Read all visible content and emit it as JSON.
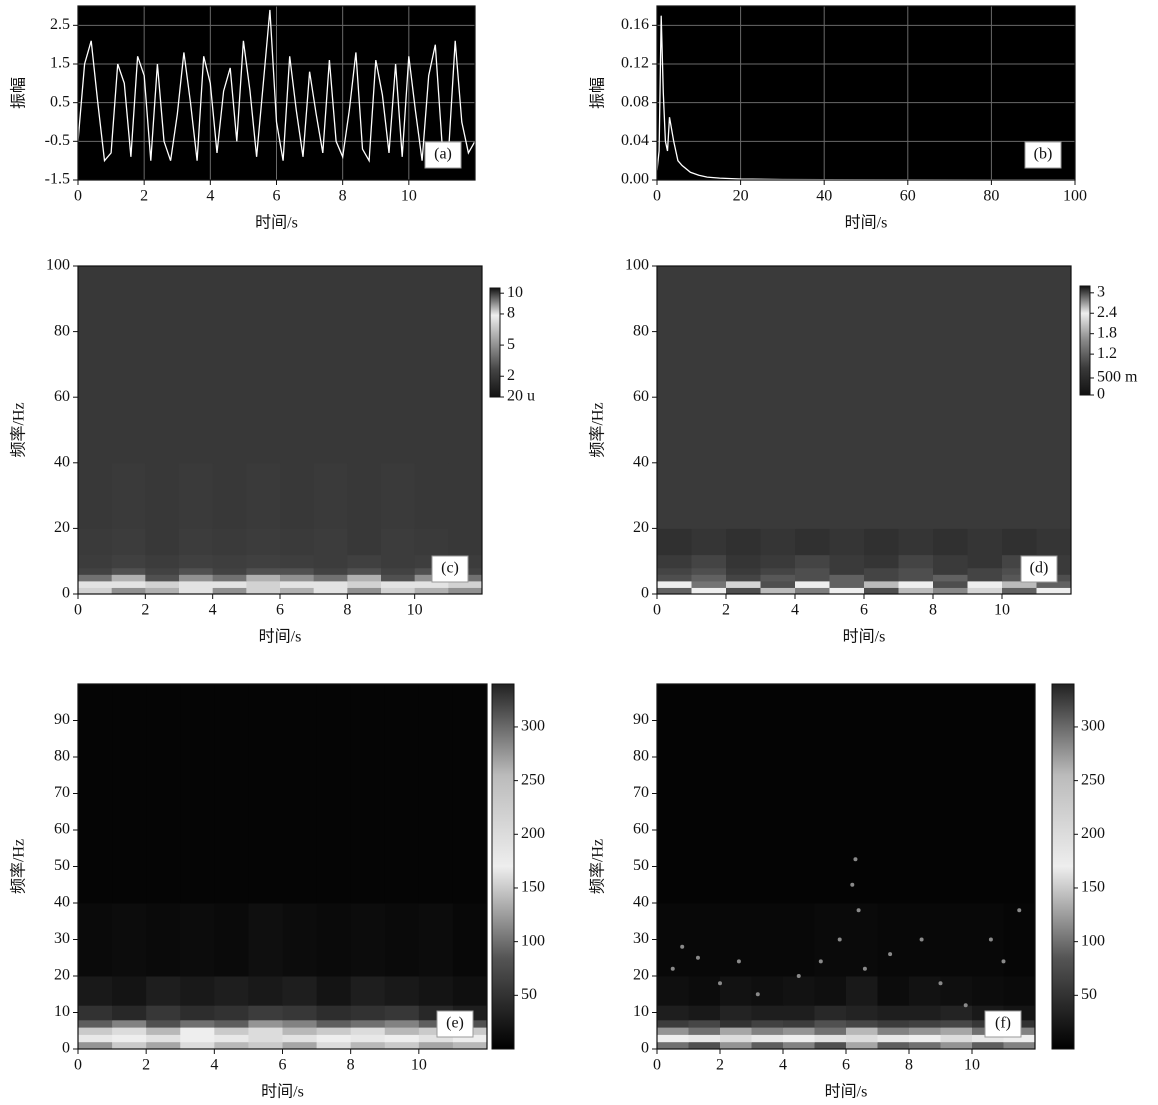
{
  "chart_data": [
    {
      "type": "line",
      "annotation": "(a)",
      "xlabel": "时间/s",
      "ylabel": "振幅",
      "color": "#ffffff",
      "background": "#000000",
      "grid": true,
      "xlim": [
        0,
        12
      ],
      "ylim": [
        -1.5,
        3
      ],
      "xticks": [
        0,
        2,
        4,
        6,
        8,
        10
      ],
      "yticks": [
        -1.5,
        -0.5,
        0.5,
        1.5,
        2.5
      ],
      "x": [
        0,
        0.2,
        0.4,
        0.6,
        0.8,
        1,
        1.2,
        1.4,
        1.6,
        1.8,
        2,
        2.2,
        2.4,
        2.6,
        2.8,
        3,
        3.2,
        3.4,
        3.6,
        3.8,
        4,
        4.2,
        4.4,
        4.6,
        4.8,
        5,
        5.2,
        5.4,
        5.6,
        5.8,
        6,
        6.2,
        6.4,
        6.6,
        6.8,
        7,
        7.2,
        7.4,
        7.6,
        7.8,
        8,
        8.2,
        8.4,
        8.6,
        8.8,
        9,
        9.2,
        9.4,
        9.6,
        9.8,
        10,
        10.2,
        10.4,
        10.6,
        10.8,
        11,
        11.2,
        11.4,
        11.6,
        11.8,
        12
      ],
      "values": [
        -0.5,
        1.5,
        2.1,
        0.5,
        -1.0,
        -0.8,
        1.5,
        1.0,
        -0.9,
        1.7,
        1.2,
        -1.0,
        1.5,
        -0.5,
        -1.0,
        0.2,
        1.8,
        0.5,
        -1.0,
        1.7,
        1.0,
        -0.8,
        0.8,
        1.4,
        -0.5,
        2.1,
        0.8,
        -0.9,
        1.0,
        2.9,
        0.0,
        -1.0,
        1.7,
        0.3,
        -0.9,
        1.3,
        0.2,
        -0.8,
        1.6,
        -0.5,
        -0.9,
        0.3,
        1.8,
        -0.7,
        -1.0,
        1.6,
        0.7,
        -0.8,
        1.5,
        -0.9,
        1.7,
        0.3,
        -1.0,
        1.2,
        2.0,
        -0.5,
        -0.8,
        2.1,
        0.0,
        -0.8,
        -0.5
      ]
    },
    {
      "type": "line",
      "annotation": "(b)",
      "xlabel": "时间/s",
      "ylabel": "振幅",
      "color": "#ffffff",
      "background": "#000000",
      "grid": true,
      "xlim": [
        0,
        100
      ],
      "ylim": [
        0,
        0.18
      ],
      "xticks": [
        0,
        20,
        40,
        60,
        80,
        100
      ],
      "yticks": [
        {
          "value": 0,
          "label": "0.00"
        },
        {
          "value": 0.04,
          "label": "0.04"
        },
        {
          "value": 0.08,
          "label": "0.08"
        },
        {
          "value": 0.12,
          "label": "0.12"
        },
        {
          "value": 0.16,
          "label": "0.16"
        }
      ],
      "x": [
        0,
        0.5,
        1,
        1.5,
        2,
        2.5,
        3,
        4,
        5,
        6,
        8,
        10,
        12,
        15,
        20,
        30,
        40,
        60,
        80,
        100
      ],
      "values": [
        0.01,
        0.03,
        0.17,
        0.09,
        0.04,
        0.03,
        0.065,
        0.04,
        0.02,
        0.015,
        0.008,
        0.005,
        0.003,
        0.002,
        0.001,
        0.0005,
        0.0003,
        0.0002,
        0.0001,
        0.0001
      ]
    },
    {
      "type": "heatmap",
      "annotation": "(c)",
      "xlabel": "时间/s",
      "ylabel": "频率/Hz",
      "background": "#3a3a3a",
      "xlim": [
        0,
        12
      ],
      "ylim": [
        0,
        100
      ],
      "xticks": [
        0,
        2,
        4,
        6,
        8,
        10
      ],
      "yticks": [
        0,
        20,
        40,
        60,
        80,
        100
      ],
      "zlim": [
        0,
        10.5
      ],
      "zticks": [
        10,
        8,
        5,
        2,
        {
          "value": 2e-05,
          "label": "20 u"
        }
      ],
      "colormap": [
        "#111111",
        "#444444",
        "#999999",
        "#eeeeee",
        "#111111"
      ],
      "x_edges": [
        0,
        1,
        2,
        3,
        4,
        5,
        6,
        7,
        8,
        9,
        10,
        11,
        12
      ],
      "y_edges": [
        0,
        2,
        4,
        6,
        8,
        12,
        20,
        40,
        100
      ],
      "z": [
        [
          7,
          5,
          6,
          8,
          5,
          7,
          6,
          8,
          5,
          7,
          6,
          5
        ],
        [
          8,
          8,
          7,
          8,
          8,
          7,
          8,
          8,
          7,
          8,
          8,
          7
        ],
        [
          4,
          6,
          3,
          5,
          4,
          6,
          5,
          4,
          6,
          3,
          5,
          4
        ],
        [
          2.5,
          3,
          2.5,
          3,
          2.5,
          3,
          3,
          2.5,
          3,
          2.5,
          3,
          2.5
        ],
        [
          2.2,
          2.4,
          2.2,
          2.4,
          2.3,
          2.4,
          2.3,
          2.2,
          2.4,
          2.2,
          2.3,
          2.2
        ],
        [
          2.1,
          2.2,
          2,
          2.2,
          2.1,
          2.2,
          2.1,
          2.2,
          2,
          2.2,
          2.1,
          2
        ],
        [
          2,
          2.1,
          2,
          2.1,
          2,
          2.1,
          2,
          2.1,
          2,
          2.1,
          2,
          2
        ],
        [
          2,
          2,
          2,
          2,
          2,
          2,
          2,
          2,
          2,
          2,
          2,
          2
        ]
      ]
    },
    {
      "type": "heatmap",
      "annotation": "(d)",
      "xlabel": "时间/s",
      "ylabel": "频率/Hz",
      "background": "#3a3a3a",
      "xlim": [
        0,
        12
      ],
      "ylim": [
        0,
        100
      ],
      "xticks": [
        0,
        2,
        4,
        6,
        8,
        10
      ],
      "yticks": [
        0,
        20,
        40,
        60,
        80,
        100
      ],
      "zlim": [
        0,
        3.2
      ],
      "zticks": [
        3,
        2.4,
        1.8,
        1.2,
        {
          "value": 0.5,
          "label": "500 m"
        },
        0
      ],
      "colormap": [
        "#111111",
        "#3a3a3a",
        "#888888",
        "#eeeeee",
        "#111111"
      ],
      "x_edges": [
        0,
        1,
        2,
        3,
        4,
        5,
        6,
        7,
        8,
        9,
        10,
        11,
        12
      ],
      "y_edges": [
        0,
        2,
        4,
        6,
        8,
        12,
        20,
        40,
        100
      ],
      "z": [
        [
          1.2,
          2.4,
          1,
          2,
          1.5,
          2.4,
          1,
          2,
          1.6,
          2.2,
          1.2,
          2.4
        ],
        [
          2.4,
          1.4,
          2.2,
          1,
          2.4,
          1.2,
          2.0,
          2.4,
          1,
          2.4,
          2.0,
          1.2
        ],
        [
          1.0,
          1.2,
          0.9,
          1.1,
          1,
          1.2,
          0.9,
          1,
          1.2,
          0.9,
          1.1,
          1
        ],
        [
          0.9,
          1,
          0.8,
          0.9,
          1,
          0.8,
          0.9,
          1,
          0.8,
          0.9,
          1,
          0.8
        ],
        [
          0.8,
          0.9,
          0.7,
          0.8,
          0.9,
          0.8,
          0.7,
          0.9,
          0.8,
          0.7,
          0.9,
          0.8
        ],
        [
          0.6,
          0.7,
          0.6,
          0.7,
          0.6,
          0.7,
          0.6,
          0.7,
          0.6,
          0.7,
          0.6,
          0.7
        ],
        [
          0.8,
          0.8,
          0.8,
          0.8,
          0.8,
          0.8,
          0.8,
          0.8,
          0.8,
          0.8,
          0.8,
          0.8
        ],
        [
          0.8,
          0.8,
          0.8,
          0.8,
          0.8,
          0.8,
          0.8,
          0.8,
          0.8,
          0.8,
          0.8,
          0.8
        ]
      ]
    },
    {
      "type": "heatmap",
      "annotation": "(e)",
      "xlabel": "时间/s",
      "ylabel": "频率/Hz",
      "background": "#000000",
      "xlim": [
        0,
        12
      ],
      "ylim": [
        0,
        100
      ],
      "xticks": [
        0,
        2,
        4,
        6,
        8,
        10
      ],
      "yticks": [
        0,
        10,
        20,
        30,
        40,
        50,
        60,
        70,
        80,
        90
      ],
      "zlim": [
        0,
        340
      ],
      "zticks": [
        50,
        100,
        150,
        200,
        250,
        300
      ],
      "colormap": [
        "#000000",
        "#555555",
        "#eeeeee",
        "#bbbbbb",
        "#222222"
      ],
      "x_edges": [
        0,
        1,
        2,
        3,
        4,
        5,
        6,
        7,
        8,
        9,
        10,
        11,
        12
      ],
      "y_edges": [
        0,
        2,
        4,
        6,
        8,
        12,
        20,
        40,
        100
      ],
      "z": [
        [
          120,
          150,
          130,
          160,
          140,
          150,
          130,
          160,
          140,
          150,
          130,
          140
        ],
        [
          180,
          170,
          190,
          170,
          180,
          160,
          190,
          170,
          180,
          170,
          190,
          170
        ],
        [
          150,
          160,
          140,
          170,
          150,
          160,
          140,
          150,
          160,
          140,
          150,
          150
        ],
        [
          90,
          110,
          80,
          100,
          90,
          120,
          110,
          90,
          100,
          110,
          90,
          80
        ],
        [
          50,
          40,
          55,
          45,
          50,
          60,
          55,
          45,
          50,
          55,
          40,
          30
        ],
        [
          25,
          20,
          30,
          25,
          30,
          25,
          30,
          20,
          30,
          25,
          20,
          15
        ],
        [
          10,
          12,
          10,
          12,
          10,
          15,
          12,
          10,
          12,
          10,
          12,
          8
        ],
        [
          5,
          5,
          5,
          5,
          5,
          5,
          5,
          5,
          5,
          5,
          5,
          5
        ]
      ]
    },
    {
      "type": "heatmap",
      "annotation": "(f)",
      "xlabel": "时间/s",
      "ylabel": "频率/Hz",
      "background": "#000000",
      "xlim": [
        0,
        12
      ],
      "ylim": [
        0,
        100
      ],
      "xticks": [
        0,
        2,
        4,
        6,
        8,
        10
      ],
      "yticks": [
        0,
        10,
        20,
        30,
        40,
        50,
        60,
        70,
        80,
        90
      ],
      "zlim": [
        0,
        340
      ],
      "zticks": [
        50,
        100,
        150,
        200,
        250,
        300
      ],
      "colormap": [
        "#000000",
        "#555555",
        "#eeeeee",
        "#bbbbbb",
        "#222222"
      ],
      "x_edges": [
        0,
        1,
        2,
        3,
        4,
        5,
        6,
        7,
        8,
        9,
        10,
        11,
        12
      ],
      "y_edges": [
        0,
        2,
        4,
        6,
        8,
        12,
        20,
        40,
        100
      ],
      "z": [
        [
          100,
          80,
          120,
          90,
          110,
          80,
          130,
          90,
          100,
          120,
          90,
          110
        ],
        [
          170,
          180,
          160,
          180,
          170,
          190,
          160,
          180,
          170,
          160,
          180,
          170
        ],
        [
          120,
          100,
          130,
          110,
          120,
          100,
          140,
          110,
          120,
          130,
          100,
          110
        ],
        [
          60,
          70,
          50,
          65,
          60,
          80,
          70,
          60,
          65,
          70,
          55,
          50
        ],
        [
          30,
          25,
          35,
          30,
          30,
          40,
          35,
          30,
          30,
          35,
          25,
          20
        ],
        [
          15,
          12,
          18,
          15,
          18,
          15,
          25,
          12,
          18,
          15,
          12,
          10
        ],
        [
          8,
          8,
          8,
          8,
          8,
          10,
          10,
          8,
          8,
          8,
          8,
          6
        ],
        [
          4,
          4,
          4,
          4,
          4,
          4,
          4,
          4,
          4,
          4,
          4,
          4
        ]
      ],
      "points": {
        "color": "#8a8a8a",
        "x": [
          0.5,
          0.8,
          1.3,
          2.0,
          2.6,
          3.2,
          4.5,
          5.2,
          5.8,
          6.2,
          6.3,
          6.4,
          6.6,
          7.4,
          8.4,
          9.0,
          9.8,
          10.6,
          11.0,
          11.5
        ],
        "y": [
          22,
          28,
          25,
          18,
          24,
          15,
          20,
          24,
          30,
          45,
          52,
          38,
          22,
          26,
          30,
          18,
          12,
          30,
          24,
          38
        ]
      }
    }
  ]
}
